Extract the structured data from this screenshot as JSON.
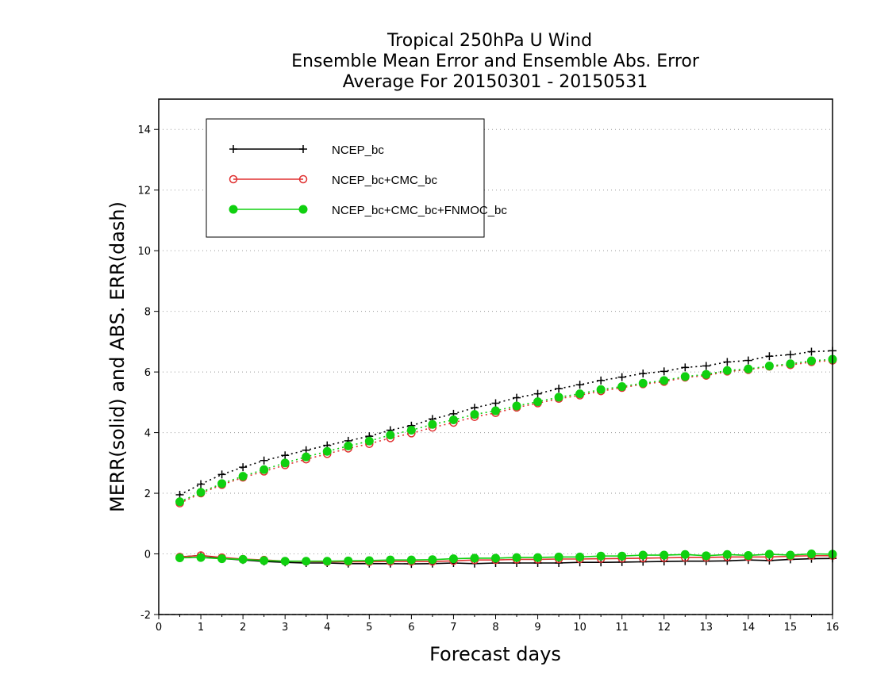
{
  "chart_data": {
    "type": "line",
    "title_lines": [
      "Tropical 250hPa U Wind",
      "Ensemble Mean Error and Ensemble Abs. Error",
      "Average For 20150301 - 20150531"
    ],
    "xlabel": "Forecast days",
    "ylabel": "MERR(solid) and ABS. ERR(dash)",
    "xlim": [
      0,
      16
    ],
    "ylim": [
      -2,
      15
    ],
    "x_ticks": [
      "0",
      "1",
      "2",
      "3",
      "4",
      "5",
      "6",
      "7",
      "8",
      "9",
      "10",
      "11",
      "12",
      "13",
      "14",
      "15",
      "16"
    ],
    "y_ticks": [
      "-2",
      "0",
      "2",
      "4",
      "6",
      "8",
      "10",
      "12",
      "14"
    ],
    "grid": "horizontal dotted",
    "legend_position": "top-left",
    "x": [
      0.5,
      1,
      1.5,
      2,
      2.5,
      3,
      3.5,
      4,
      4.5,
      5,
      5.5,
      6,
      6.5,
      7,
      7.5,
      8,
      8.5,
      9,
      9.5,
      10,
      10.5,
      11,
      11.5,
      12,
      12.5,
      13,
      13.5,
      14,
      14.5,
      15,
      15.5,
      16
    ],
    "series": [
      {
        "name": "NCEP_bc",
        "color": "#000000",
        "marker": "plus",
        "merr": [
          -0.1,
          -0.05,
          -0.15,
          -0.2,
          -0.25,
          -0.28,
          -0.3,
          -0.3,
          -0.32,
          -0.32,
          -0.32,
          -0.33,
          -0.32,
          -0.3,
          -0.32,
          -0.3,
          -0.3,
          -0.3,
          -0.3,
          -0.28,
          -0.28,
          -0.27,
          -0.26,
          -0.25,
          -0.24,
          -0.24,
          -0.23,
          -0.2,
          -0.22,
          -0.18,
          -0.16,
          -0.15
        ],
        "abs_err": [
          1.95,
          2.3,
          2.62,
          2.86,
          3.08,
          3.25,
          3.42,
          3.58,
          3.73,
          3.88,
          4.08,
          4.23,
          4.45,
          4.62,
          4.82,
          4.97,
          5.15,
          5.28,
          5.45,
          5.58,
          5.72,
          5.83,
          5.95,
          6.02,
          6.15,
          6.2,
          6.33,
          6.38,
          6.52,
          6.57,
          6.67,
          6.7
        ]
      },
      {
        "name": "NCEP_bc+CMC_bc",
        "color": "#e03030",
        "marker": "open-circle",
        "merr": [
          -0.1,
          -0.05,
          -0.12,
          -0.17,
          -0.2,
          -0.24,
          -0.25,
          -0.26,
          -0.26,
          -0.26,
          -0.25,
          -0.25,
          -0.25,
          -0.23,
          -0.2,
          -0.2,
          -0.18,
          -0.18,
          -0.17,
          -0.17,
          -0.16,
          -0.15,
          -0.14,
          -0.13,
          -0.12,
          -0.12,
          -0.1,
          -0.1,
          -0.1,
          -0.08,
          -0.06,
          -0.06
        ],
        "abs_err": [
          1.67,
          2.0,
          2.28,
          2.52,
          2.72,
          2.93,
          3.12,
          3.3,
          3.48,
          3.63,
          3.82,
          3.98,
          4.17,
          4.33,
          4.52,
          4.65,
          4.83,
          4.97,
          5.12,
          5.23,
          5.37,
          5.48,
          5.6,
          5.68,
          5.82,
          5.88,
          6.02,
          6.07,
          6.18,
          6.23,
          6.33,
          6.38
        ]
      },
      {
        "name": "NCEP_bc+CMC_bc+FNMOC_bc",
        "color": "#10d010",
        "marker": "filled-circle",
        "merr": [
          -0.13,
          -0.12,
          -0.16,
          -0.18,
          -0.22,
          -0.24,
          -0.24,
          -0.24,
          -0.23,
          -0.22,
          -0.2,
          -0.2,
          -0.19,
          -0.16,
          -0.14,
          -0.14,
          -0.12,
          -0.12,
          -0.1,
          -0.1,
          -0.07,
          -0.07,
          -0.04,
          -0.04,
          -0.02,
          -0.06,
          -0.02,
          -0.05,
          -0.01,
          -0.04,
          0.0,
          -0.01
        ],
        "abs_err": [
          1.72,
          2.03,
          2.32,
          2.56,
          2.78,
          3.0,
          3.2,
          3.38,
          3.56,
          3.72,
          3.92,
          4.08,
          4.27,
          4.42,
          4.6,
          4.72,
          4.88,
          5.02,
          5.17,
          5.28,
          5.42,
          5.52,
          5.63,
          5.72,
          5.85,
          5.92,
          6.05,
          6.1,
          6.2,
          6.27,
          6.37,
          6.42
        ]
      }
    ]
  }
}
